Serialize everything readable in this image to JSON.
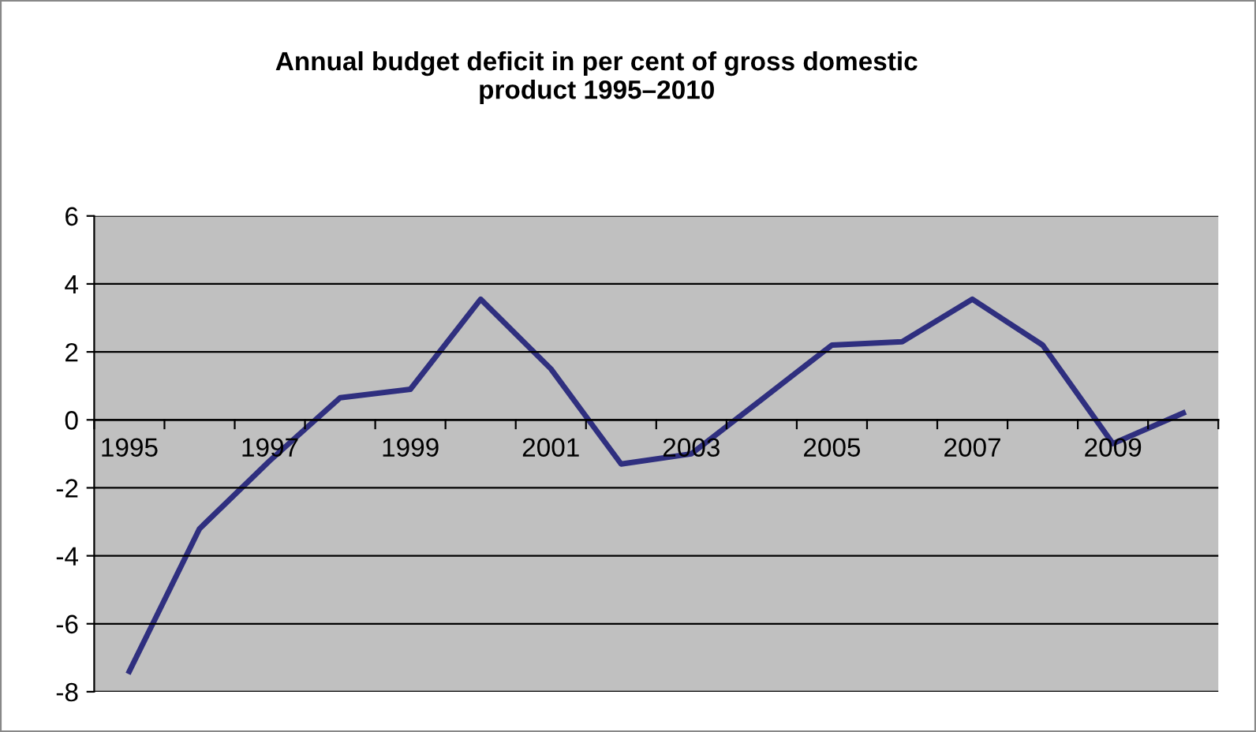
{
  "chart_data": {
    "type": "line",
    "title": "Annual budget deficit in per cent of gross domestic\nproduct 1995–2010",
    "categories": [
      "1995",
      null,
      "1997",
      null,
      "1999",
      null,
      "2001",
      null,
      "2003",
      null,
      "2005",
      null,
      "2007",
      null,
      "2009",
      null
    ],
    "series": [
      {
        "color": "#2f2f7f",
        "values": [
          -7.4,
          -3.2,
          -1.2,
          0.65,
          0.9,
          3.55,
          1.5,
          -1.3,
          -1.0,
          0.6,
          2.2,
          2.3,
          3.55,
          2.2,
          -0.7,
          0.2
        ]
      }
    ],
    "ylim": [
      -8,
      6
    ],
    "yticks": [
      -8,
      -6,
      -4,
      -2,
      0,
      2,
      4,
      6
    ],
    "grid": "y",
    "marker": "none",
    "line_style": "solid"
  }
}
